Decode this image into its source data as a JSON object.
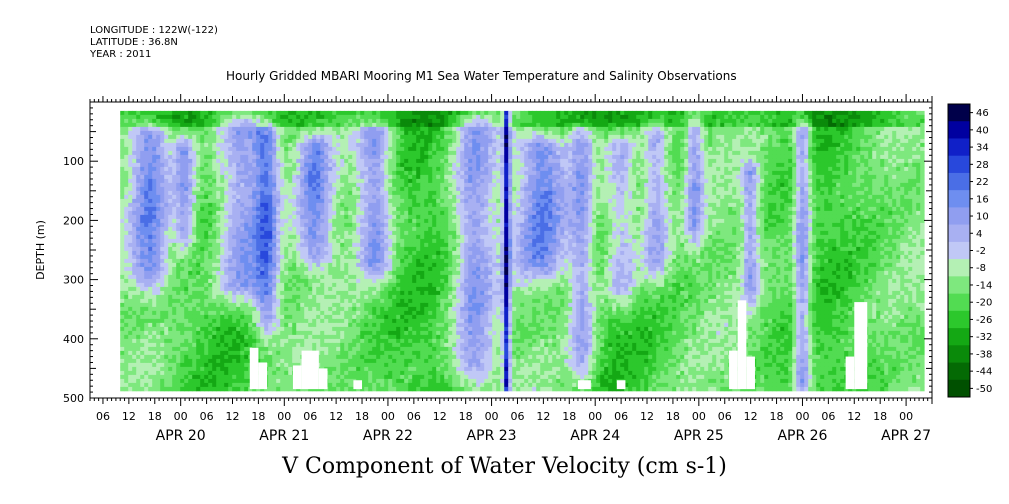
{
  "header": {
    "longitude": "LONGITUDE : 122W(-122)",
    "latitude": "LATITUDE : 36.8N",
    "year": "YEAR : 2011"
  },
  "colors": {
    "colorbar": [
      "#00004a",
      "#0000a0",
      "#1020c8",
      "#2848dc",
      "#4a6ee6",
      "#6e8ef0",
      "#909ef0",
      "#a8b0f2",
      "#c0c8f6",
      "#b4f0b4",
      "#7ee87e",
      "#52dc52",
      "#2cc82c",
      "#14a814",
      "#0a8a0a",
      "#046a04",
      "#005000"
    ],
    "missing": "#ffffff"
  },
  "chart_data": {
    "type": "heatmap",
    "title": "Hourly Gridded MBARI Mooring M1 Sea Water Temperature and Salinity Observations",
    "caption": "V Component of Water Velocity (cm s-1)",
    "ylabel": "DEPTH (m)",
    "xlabel": "",
    "x_range": [
      "APR 19 03:00",
      "APR 27 06:00"
    ],
    "y_range": [
      0,
      500
    ],
    "y_inverted": true,
    "y_ticks": [
      100,
      200,
      300,
      400,
      500
    ],
    "x_hour_ticks": [
      "06",
      "12",
      "18",
      "00",
      "06",
      "12",
      "18",
      "00",
      "06",
      "12",
      "18",
      "00",
      "06",
      "12",
      "18",
      "00",
      "06",
      "12",
      "18",
      "00",
      "06",
      "12",
      "18",
      "00",
      "06",
      "12",
      "18",
      "00",
      "06",
      "12",
      "18",
      "00"
    ],
    "x_date_labels": [
      {
        "label": "APR 20",
        "day": 20
      },
      {
        "label": "APR 21",
        "day": 21
      },
      {
        "label": "APR 22",
        "day": 22
      },
      {
        "label": "APR 23",
        "day": 23
      },
      {
        "label": "APR 24",
        "day": 24
      },
      {
        "label": "APR 25",
        "day": 25
      },
      {
        "label": "APR 26",
        "day": 26
      },
      {
        "label": "APR 27",
        "day": 27
      }
    ],
    "colorbar_levels": [
      "46",
      "40",
      "34",
      "28",
      "22",
      "16",
      "10",
      "4",
      "-2",
      "-8",
      "-14",
      "-20",
      "-26",
      "-32",
      "-38",
      "-44",
      "-50"
    ],
    "colorbar_range": [
      -50,
      52
    ],
    "depth_data_range": [
      15,
      485
    ],
    "time_data_range": [
      "APR 19 10:00",
      "APR 27 04:00"
    ],
    "northward_bands": [
      {
        "center": "APR 19 17:00",
        "width_h": 9,
        "top": 60,
        "bottom": 280,
        "v": 12
      },
      {
        "center": "APR 20 01:00",
        "width_h": 5,
        "top": 80,
        "bottom": 220,
        "v": 9
      },
      {
        "center": "APR 20 14:00",
        "width_h": 12,
        "top": 40,
        "bottom": 300,
        "v": 14
      },
      {
        "center": "APR 20 20:00",
        "width_h": 6,
        "top": 60,
        "bottom": 360,
        "v": 12
      },
      {
        "center": "APR 21 07:00",
        "width_h": 8,
        "top": 80,
        "bottom": 240,
        "v": 10
      },
      {
        "center": "APR 21 21:00",
        "width_h": 8,
        "top": 60,
        "bottom": 260,
        "v": 12
      },
      {
        "center": "APR 22 20:00",
        "width_h": 10,
        "top": 40,
        "bottom": 440,
        "v": 10
      },
      {
        "center": "APR 23 03:30",
        "width_h": 1.5,
        "top": 20,
        "bottom": 470,
        "v": 30
      },
      {
        "center": "APR 23 12:00",
        "width_h": 12,
        "top": 80,
        "bottom": 260,
        "v": 12
      },
      {
        "center": "APR 23 21:00",
        "width_h": 6,
        "top": 60,
        "bottom": 430,
        "v": 8
      },
      {
        "center": "APR 24 06:00",
        "width_h": 8,
        "top": 80,
        "bottom": 300,
        "v": 8
      },
      {
        "center": "APR 24 14:00",
        "width_h": 6,
        "top": 60,
        "bottom": 260,
        "v": 9
      },
      {
        "center": "APR 24 23:00",
        "width_h": 4,
        "top": 40,
        "bottom": 200,
        "v": 6
      },
      {
        "center": "APR 25 12:00",
        "width_h": 4,
        "top": 120,
        "bottom": 300,
        "v": 6
      },
      {
        "center": "APR 26 00:00",
        "width_h": 4,
        "top": 50,
        "bottom": 460,
        "v": 14
      }
    ],
    "missing_gaps": [
      {
        "start": "APR 20 16:00",
        "end": "APR 20 18:00",
        "top": 415
      },
      {
        "start": "APR 20 18:00",
        "end": "APR 20 20:00",
        "top": 440
      },
      {
        "start": "APR 21 16:00",
        "end": "APR 21 18:00",
        "top": 470
      },
      {
        "start": "APR 21 02:00",
        "end": "APR 21 04:00",
        "top": 445
      },
      {
        "start": "APR 21 04:00",
        "end": "APR 21 08:00",
        "top": 420
      },
      {
        "start": "APR 21 08:00",
        "end": "APR 21 10:00",
        "top": 450
      },
      {
        "start": "APR 23 20:00",
        "end": "APR 23 23:00",
        "top": 470
      },
      {
        "start": "APR 24 05:00",
        "end": "APR 24 07:00",
        "top": 470
      },
      {
        "start": "APR 25 07:00",
        "end": "APR 25 09:00",
        "top": 420
      },
      {
        "start": "APR 25 09:00",
        "end": "APR 25 11:00",
        "top": 335
      },
      {
        "start": "APR 25 11:00",
        "end": "APR 25 13:00",
        "top": 430
      },
      {
        "start": "APR 26 10:00",
        "end": "APR 26 12:00",
        "top": 430
      },
      {
        "start": "APR 26 12:00",
        "end": "APR 26 15:00",
        "top": 338
      }
    ]
  }
}
